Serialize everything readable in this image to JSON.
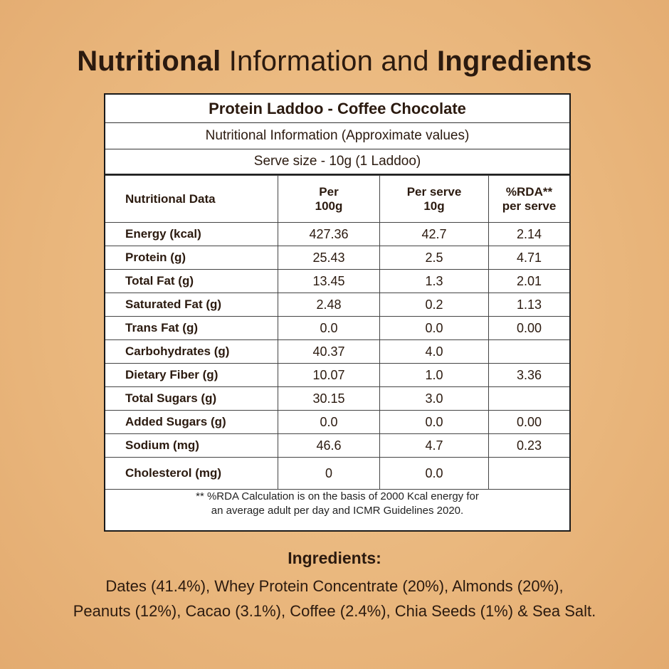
{
  "heading": {
    "part1": "Nutritional",
    "part2": " Information and ",
    "part3": "Ingredients"
  },
  "panel": {
    "product": "Protein Laddoo - Coffee Chocolate",
    "subtitle": "Nutritional Information (Approximate values)",
    "serve_size": "Serve size - 10g (1 Laddoo)",
    "columns": {
      "c0": "Nutritional Data",
      "c1a": "Per",
      "c1b": "100g",
      "c2a": "Per serve",
      "c2b": "10g",
      "c3a": "%RDA**",
      "c3b": "per serve"
    },
    "rows": [
      {
        "label": "Energy (kcal)",
        "per100": "427.36",
        "perServe": "42.7",
        "rda": "2.14"
      },
      {
        "label": "Protein (g)",
        "per100": "25.43",
        "perServe": "2.5",
        "rda": "4.71"
      },
      {
        "label": "Total Fat (g)",
        "per100": "13.45",
        "perServe": "1.3",
        "rda": "2.01"
      },
      {
        "label": "Saturated Fat (g)",
        "per100": "2.48",
        "perServe": "0.2",
        "rda": "1.13"
      },
      {
        "label": "Trans Fat (g)",
        "per100": "0.0",
        "perServe": "0.0",
        "rda": "0.00"
      },
      {
        "label": "Carbohydrates (g)",
        "per100": "40.37",
        "perServe": "4.0",
        "rda": ""
      },
      {
        "label": "Dietary Fiber (g)",
        "per100": "10.07",
        "perServe": "1.0",
        "rda": "3.36"
      },
      {
        "label": "Total Sugars (g)",
        "per100": "30.15",
        "perServe": "3.0",
        "rda": ""
      },
      {
        "label": "Added Sugars (g)",
        "per100": "0.0",
        "perServe": "0.0",
        "rda": "0.00"
      },
      {
        "label": "Sodium (mg)",
        "per100": "46.6",
        "perServe": "4.7",
        "rda": "0.23"
      },
      {
        "label": "Cholesterol (mg)",
        "per100": "0",
        "perServe": "0.0",
        "rda": ""
      }
    ],
    "footnote_line1": "** %RDA Calculation is on the basis of 2000 Kcal energy for",
    "footnote_line2": "an average adult per day and ICMR Guidelines 2020."
  },
  "ingredients": {
    "title": "Ingredients:",
    "line1": "Dates (41.4%), Whey Protein Concentrate (20%), Almonds (20%),",
    "line2": "Peanuts (12%), Cacao (3.1%), Coffee (2.4%), Chia Seeds (1%) & Sea Salt."
  }
}
